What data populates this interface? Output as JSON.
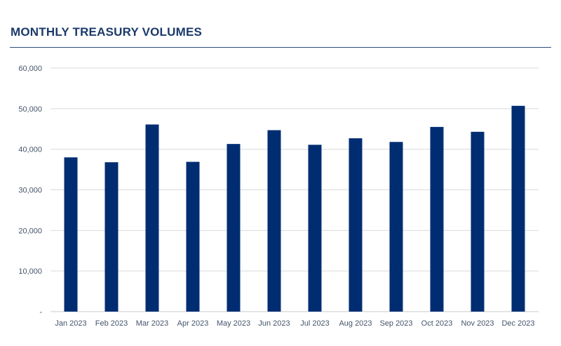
{
  "title": "MONTHLY TREASURY VOLUMES",
  "chart_data": {
    "type": "bar",
    "title": "MONTHLY TREASURY VOLUMES",
    "xlabel": "",
    "ylabel": "",
    "categories": [
      "Jan 2023",
      "Feb 2023",
      "Mar 2023",
      "Apr 2023",
      "May 2023",
      "Jun 2023",
      "Jul 2023",
      "Aug 2023",
      "Sep 2023",
      "Oct 2023",
      "Nov 2023",
      "Dec 2023"
    ],
    "values": [
      38000,
      36800,
      46100,
      36900,
      41300,
      44700,
      41100,
      42700,
      41800,
      45500,
      44300,
      50700
    ],
    "ylim": [
      0,
      60000
    ],
    "yticks": [
      0,
      10000,
      20000,
      30000,
      40000,
      50000,
      60000
    ],
    "ytick_labels": [
      "-",
      "10,000",
      "20,000",
      "30,000",
      "40,000",
      "50,000",
      "60,000"
    ],
    "grid": true,
    "legend": "none",
    "bar_color": "#002d72"
  }
}
